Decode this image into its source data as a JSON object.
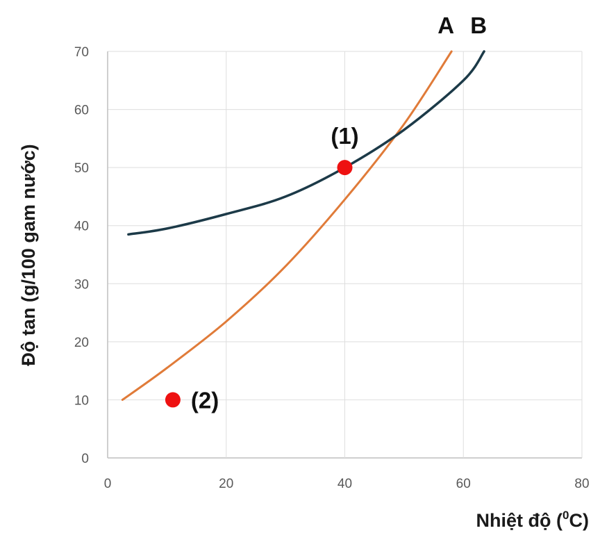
{
  "chart_data": {
    "type": "line",
    "title": "",
    "xlabel": "Nhiệt độ (",
    "xlabel_sup": "0",
    "xlabel_tail": "C)",
    "ylabel": "Độ tan (g/100 gam nước)",
    "xlim": [
      0,
      80
    ],
    "ylim": [
      0,
      70
    ],
    "x_ticks": [
      0,
      20,
      40,
      60,
      80
    ],
    "y_ticks": [
      0,
      10,
      20,
      30,
      40,
      50,
      60,
      70
    ],
    "grid": true,
    "series": [
      {
        "name": "A",
        "color": "#e07b39",
        "x": [
          2.5,
          10,
          20,
          30,
          40,
          50,
          58
        ],
        "y": [
          10,
          15.5,
          23.5,
          33,
          44.5,
          57.5,
          70
        ]
      },
      {
        "name": "B",
        "color": "#1c3a48",
        "x": [
          3.5,
          10,
          20,
          30,
          40,
          50,
          60,
          63.5
        ],
        "y": [
          38.5,
          39.5,
          42,
          45,
          50,
          56.5,
          65,
          70
        ]
      }
    ],
    "points": [
      {
        "label": "(1)",
        "x": 40,
        "y": 50,
        "color": "#ee1111"
      },
      {
        "label": "(2)",
        "x": 11,
        "y": 10,
        "color": "#ee1111"
      }
    ]
  }
}
